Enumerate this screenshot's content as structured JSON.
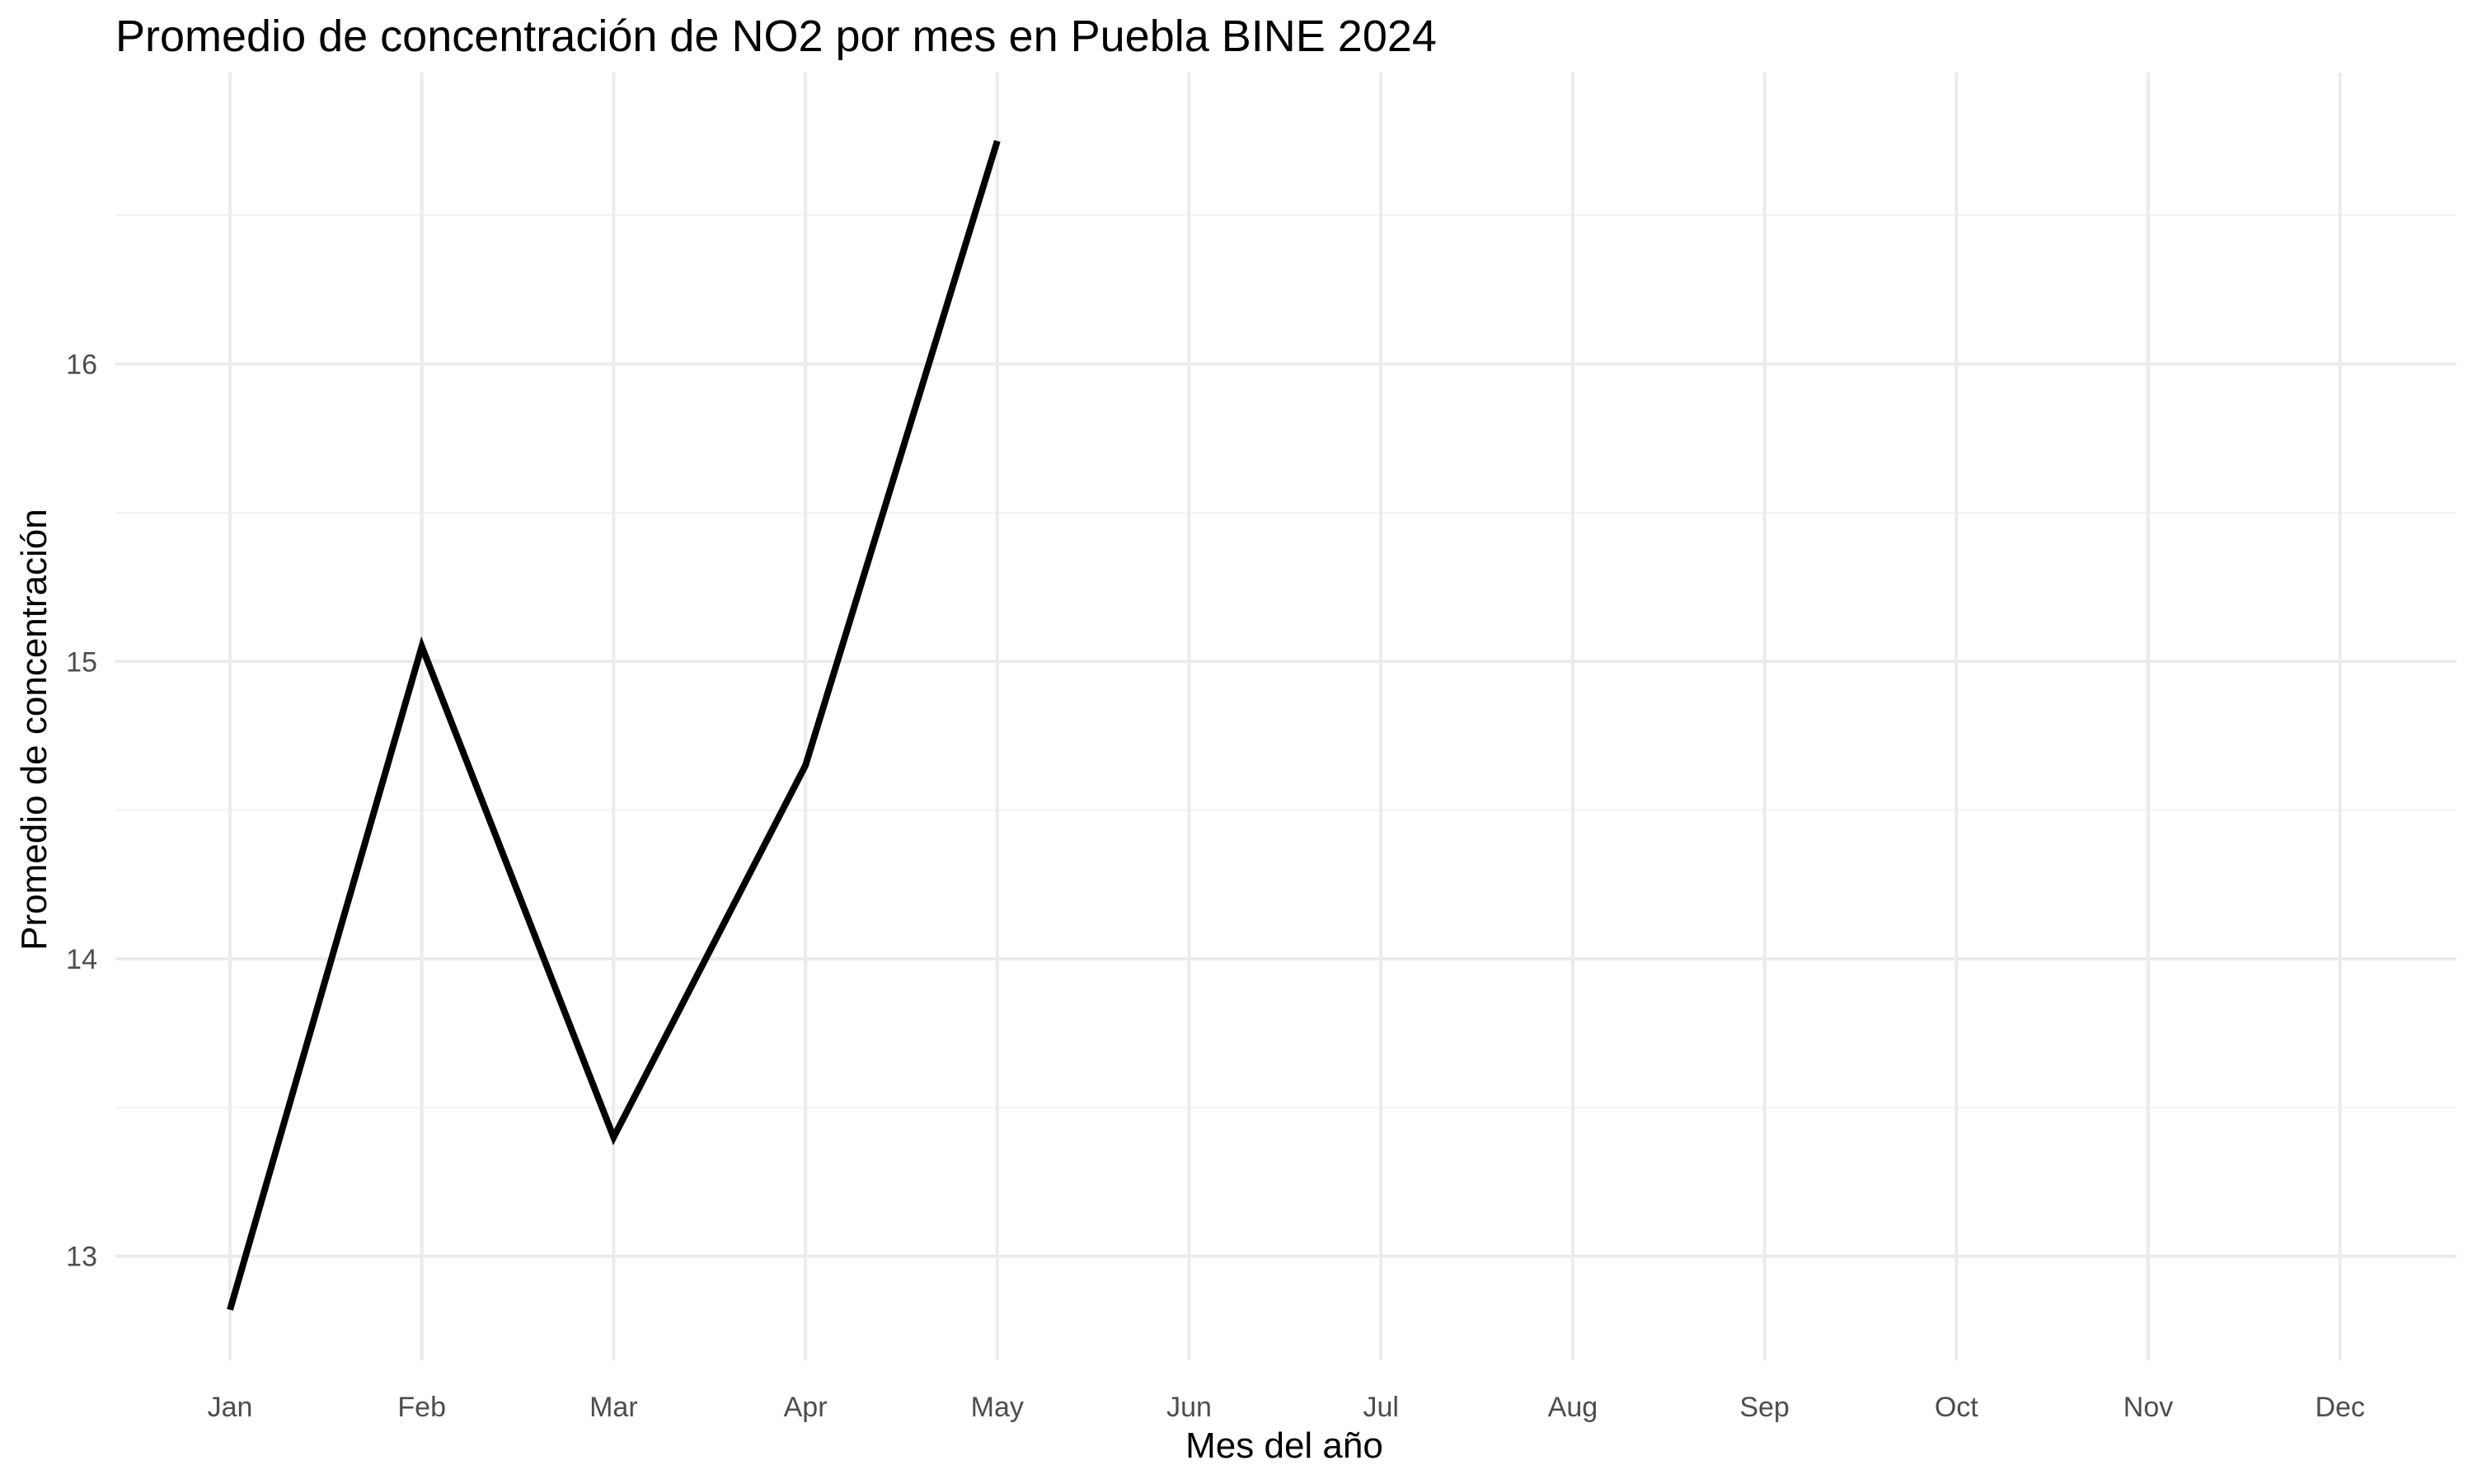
{
  "chart_data": {
    "type": "line",
    "title": "Promedio de concentración de NO2 por mes en Puebla BINE 2024",
    "xlabel": "Mes del año",
    "ylabel": "Promedio de concentración",
    "categories": [
      "Jan",
      "Feb",
      "Mar",
      "Apr",
      "May",
      "Jun",
      "Jul",
      "Aug",
      "Sep",
      "Oct",
      "Nov",
      "Dec"
    ],
    "series": [
      {
        "values": [
          12.82,
          15.05,
          13.4,
          14.65,
          16.75,
          null,
          null,
          null,
          null,
          null,
          null,
          null
        ],
        "color": "#000000"
      }
    ],
    "y_ticks": [
      13,
      14,
      15,
      16
    ],
    "ylim": [
      12.65,
      16.98
    ],
    "grid": true,
    "colors": {
      "background": "#ffffff",
      "grid_major": "#ebebeb",
      "grid_minor": "#f3f3f3",
      "line": "#000000",
      "tick_text": "#4d4d4d"
    }
  }
}
